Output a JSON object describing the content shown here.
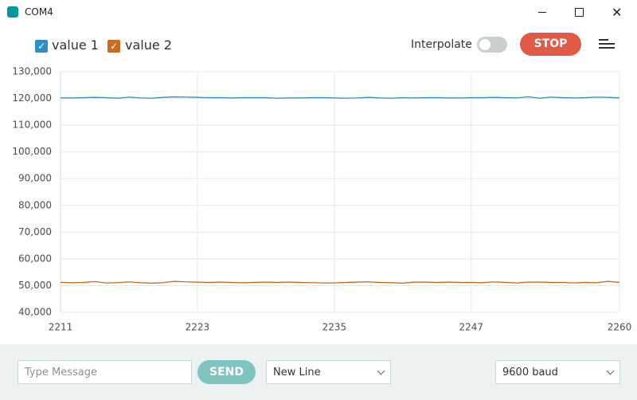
{
  "window": {
    "title": "COM4"
  },
  "toolbar": {
    "interpolate_label": "Interpolate",
    "stop_button": "STOP"
  },
  "chart_data": {
    "type": "line",
    "x": [
      2211,
      2212,
      2213,
      2214,
      2215,
      2216,
      2217,
      2218,
      2219,
      2220,
      2221,
      2222,
      2223,
      2224,
      2225,
      2226,
      2227,
      2228,
      2229,
      2230,
      2231,
      2232,
      2233,
      2234,
      2235,
      2236,
      2237,
      2238,
      2239,
      2240,
      2241,
      2242,
      2243,
      2244,
      2245,
      2246,
      2247,
      2248,
      2249,
      2250,
      2251,
      2252,
      2253,
      2254,
      2255,
      2256,
      2257,
      2258,
      2259,
      2260
    ],
    "xlim": [
      2211,
      2260
    ],
    "xticks": [
      2211,
      2223,
      2235,
      2247,
      2260
    ],
    "ylim": [
      40000,
      130000
    ],
    "yticks": [
      {
        "value": 40000,
        "label": "40,000"
      },
      {
        "value": 50000,
        "label": "50,000"
      },
      {
        "value": 60000,
        "label": "60,000"
      },
      {
        "value": 70000,
        "label": "70,000"
      },
      {
        "value": 80000,
        "label": "80,000"
      },
      {
        "value": 90000,
        "label": "90,000"
      },
      {
        "value": 100000,
        "label": "100,000"
      },
      {
        "value": 110000,
        "label": "110,000"
      },
      {
        "value": 120000,
        "label": "120,000"
      },
      {
        "value": 130000,
        "label": "130,000"
      }
    ],
    "grid": true,
    "series": [
      {
        "name": "value 1",
        "color": "#2f8ec5",
        "values": [
          120200,
          120200,
          120300,
          120400,
          120300,
          120100,
          120500,
          120200,
          120100,
          120400,
          120600,
          120500,
          120400,
          120300,
          120300,
          120200,
          120300,
          120300,
          120300,
          120100,
          120200,
          120200,
          120300,
          120300,
          120200,
          120100,
          120200,
          120400,
          120200,
          120100,
          120300,
          120200,
          120300,
          120300,
          120200,
          120200,
          120300,
          120300,
          120400,
          120300,
          120200,
          120600,
          120100,
          120500,
          120300,
          120200,
          120300,
          120500,
          120400,
          120200
        ]
      },
      {
        "name": "value 2",
        "color": "#cf6a1b",
        "values": [
          51200,
          51100,
          51200,
          51500,
          51000,
          51100,
          51400,
          51100,
          50900,
          51100,
          51600,
          51400,
          51300,
          51200,
          51300,
          51200,
          51100,
          51200,
          51300,
          51200,
          51300,
          51200,
          51100,
          51000,
          51000,
          51200,
          51300,
          51400,
          51200,
          51100,
          50900,
          51300,
          51300,
          51200,
          51300,
          51200,
          51200,
          51100,
          51400,
          51200,
          51000,
          51300,
          51300,
          51200,
          51200,
          51000,
          51200,
          51100,
          51600,
          51200
        ]
      }
    ]
  },
  "footer": {
    "message_placeholder": "Type Message",
    "send_button": "SEND",
    "line_ending": "New Line",
    "baud_rate": "9600 baud"
  }
}
